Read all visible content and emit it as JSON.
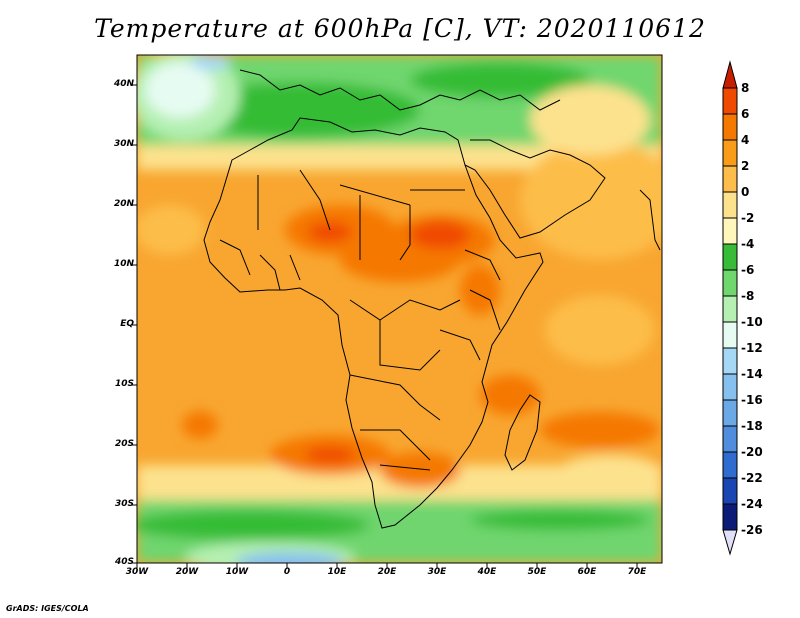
{
  "title": "Temperature at 600hPa [C], VT: 2020110612",
  "credit": "GrADS: IGES/COLA",
  "lat_labels": [
    "40N",
    "30N",
    "20N",
    "10N",
    "EQ",
    "10S",
    "20S",
    "30S",
    "40S"
  ],
  "lon_labels": [
    "30W",
    "20W",
    "10W",
    "0",
    "10E",
    "20E",
    "30E",
    "40E",
    "50E",
    "60E",
    "70E"
  ],
  "colorbar": {
    "labels": [
      "8",
      "6",
      "4",
      "2",
      "0",
      "-2",
      "-4",
      "-6",
      "-8",
      "-10",
      "-12",
      "-14",
      "-16",
      "-18",
      "-20",
      "-22",
      "-24",
      "-26"
    ],
    "colors": [
      "#c81e00",
      "#f04a00",
      "#f57800",
      "#f89c1a",
      "#fdbd4a",
      "#fde28e",
      "#fff6bc",
      "#36bc36",
      "#70d66e",
      "#b5f0b2",
      "#e6fbf2",
      "#a4d8f4",
      "#86c0ee",
      "#6aa8e6",
      "#4e8edc",
      "#2e6cd0",
      "#1a46b4",
      "#0a1c78",
      "#e0e0f8"
    ]
  },
  "map": {
    "extent": {
      "lon": [
        -30,
        75
      ],
      "lat": [
        -40,
        45
      ]
    },
    "fill_color_dominant": "#f8a630"
  }
}
